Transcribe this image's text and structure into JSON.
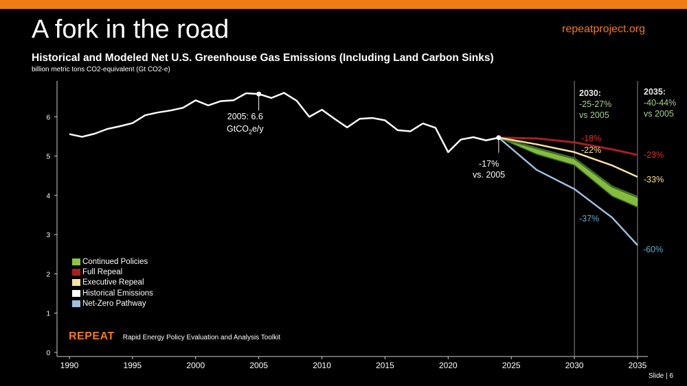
{
  "header": {
    "title": "A fork in the road",
    "site": "repeatproject.org",
    "subtitle": "Historical and Modeled Net U.S. Greenhouse Gas Emissions (Including Land Carbon Sinks)",
    "units": "billion metric tons CO2-equivalent (Gt CO2-e)"
  },
  "footer": {
    "brand": "REPEAT",
    "tagline": "Rapid Energy Policy Evaluation and Analysis Toolkit",
    "slide_label": "Slide | 6"
  },
  "colors": {
    "accent": "#f07c16",
    "historical": "#ffffff",
    "continued": "#8cc63f",
    "continued_dark": "#3e6e2a",
    "full_repeal": "#a81e22",
    "exec_repeal": "#fbe4a0",
    "net_zero": "#9fbfe0",
    "label_green": "#a8d08d",
    "label_red": "#e03030",
    "label_yellow": "#ffe08a",
    "label_blue": "#5fb0c8"
  },
  "chart_data": {
    "type": "line",
    "title": "Historical and Modeled Net U.S. Greenhouse Gas Emissions (Including Land Carbon Sinks)",
    "ylabel": "billion metric tons CO2-equivalent (Gt CO2-e)",
    "xlim": [
      1989,
      2036
    ],
    "ylim": [
      0,
      6.8
    ],
    "x_ticks": [
      1990,
      1995,
      2000,
      2005,
      2010,
      2015,
      2020,
      2025,
      2030,
      2035
    ],
    "y_ticks": [
      0,
      1,
      2,
      3,
      4,
      5,
      6
    ],
    "series": [
      {
        "name": "Historical Emissions",
        "key": "historical",
        "x": [
          1990,
          1991,
          1992,
          1993,
          1994,
          1995,
          1996,
          1997,
          1998,
          1999,
          2000,
          2001,
          2002,
          2003,
          2004,
          2005,
          2006,
          2007,
          2008,
          2009,
          2010,
          2011,
          2012,
          2013,
          2014,
          2015,
          2016,
          2017,
          2018,
          2019,
          2020,
          2021,
          2022,
          2023,
          2024
        ],
        "values": [
          5.56,
          5.49,
          5.57,
          5.69,
          5.76,
          5.84,
          6.04,
          6.11,
          6.16,
          6.23,
          6.42,
          6.29,
          6.4,
          6.42,
          6.6,
          6.58,
          6.48,
          6.61,
          6.41,
          6.0,
          6.18,
          5.95,
          5.73,
          5.95,
          5.97,
          5.91,
          5.66,
          5.63,
          5.83,
          5.72,
          5.1,
          5.42,
          5.48,
          5.4,
          5.47
        ]
      },
      {
        "name": "Full Repeal",
        "key": "full_repeal",
        "x": [
          2024,
          2027,
          2030,
          2033,
          2035
        ],
        "values": [
          5.47,
          5.45,
          5.35,
          5.17,
          5.03
        ]
      },
      {
        "name": "Executive Repeal",
        "key": "exec_repeal",
        "x": [
          2024,
          2027,
          2030,
          2033,
          2035
        ],
        "values": [
          5.47,
          5.3,
          5.1,
          4.76,
          4.47
        ]
      },
      {
        "name": "Continued Policies",
        "key": "continued",
        "x": [
          2024,
          2027,
          2030,
          2033,
          2035
        ],
        "values_low": [
          5.47,
          5.05,
          4.77,
          3.98,
          3.7
        ],
        "values_high": [
          5.47,
          5.2,
          4.94,
          4.22,
          3.96
        ]
      },
      {
        "name": "Net-Zero Pathway",
        "key": "net_zero",
        "x": [
          2024,
          2027,
          2030,
          2033,
          2035
        ],
        "values": [
          5.47,
          4.65,
          4.16,
          3.43,
          2.73
        ]
      }
    ],
    "legend": [
      {
        "label": "Continued Policies",
        "key": "continued"
      },
      {
        "label": "Full Repeal",
        "key": "full_repeal"
      },
      {
        "label": "Executive Repeal",
        "key": "exec_repeal"
      },
      {
        "label": "Historical Emissions",
        "key": "historical"
      },
      {
        "label": "Net-Zero Pathway",
        "key": "net_zero"
      }
    ],
    "markers": [
      {
        "x": 2005,
        "y": 6.58
      },
      {
        "x": 2024,
        "y": 5.47
      }
    ],
    "reference_years": [
      2030,
      2035
    ],
    "annotations": {
      "peak_2005": {
        "line1": "2005: 6.6",
        "line2_pre": "GtCO",
        "line2_sub": "2",
        "line2_post": "e/y"
      },
      "latest_2024": {
        "line1": "-17%",
        "line2": "vs. 2005"
      },
      "y2030": {
        "heading": "2030:",
        "range": "-25-27%",
        "ref": "vs 2005"
      },
      "y2035": {
        "heading": "2035:",
        "range": "-40-44%",
        "ref": "vs 2005"
      },
      "full_repeal_2030": "-18%",
      "exec_repeal_2030": "-22%",
      "net_zero_2030": "-37%",
      "full_repeal_2035": "-23%",
      "exec_repeal_2035": "-33%",
      "net_zero_2035": "-60%"
    }
  }
}
